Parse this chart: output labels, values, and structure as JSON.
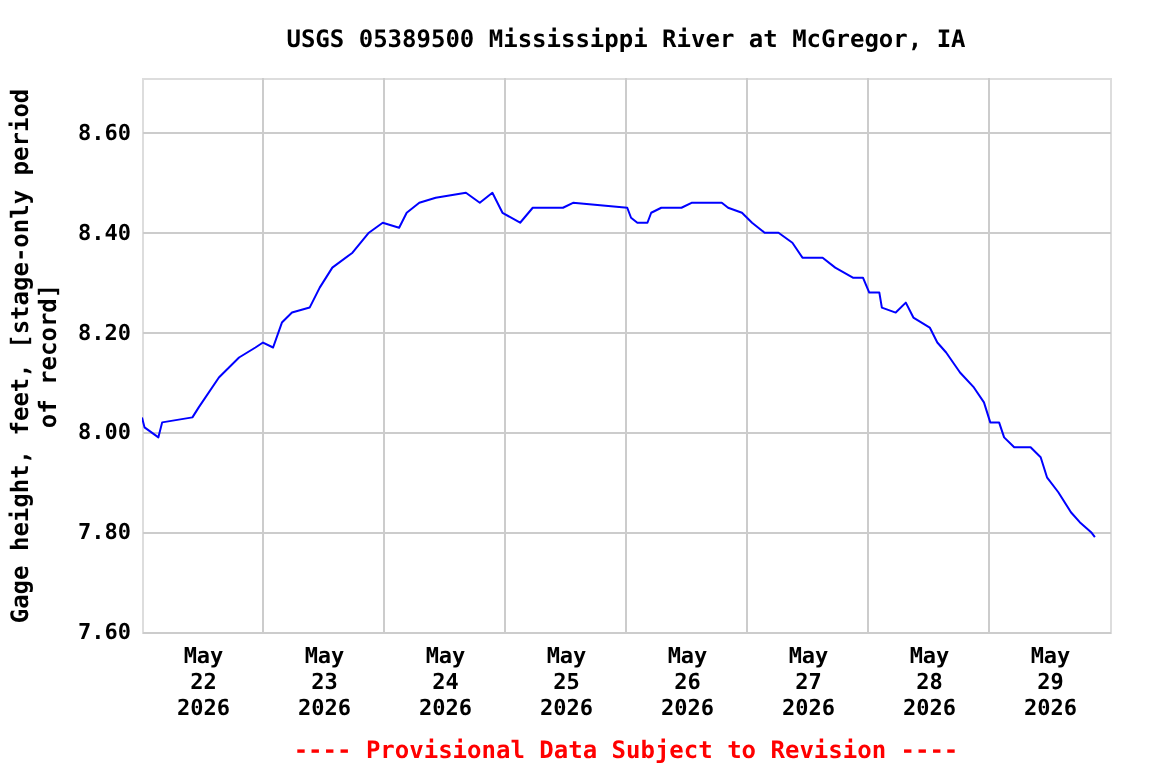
{
  "chart_data": {
    "type": "line",
    "title": "USGS 05389500 Mississippi River at McGregor, IA",
    "ylabel": "Gage height, feet, [stage-only period\nof record]",
    "annotations": [
      "---- Provisional Data Subject to Revision ----"
    ],
    "x": [
      "2026-05-22T00:00",
      "2026-05-22T00:30",
      "2026-05-22T03:15",
      "2026-05-22T04:00",
      "2026-05-22T10:00",
      "2026-05-22T11:15",
      "2026-05-22T15:15",
      "2026-05-22T17:15",
      "2026-05-22T19:15",
      "2026-05-22T22:30",
      "2026-05-23T00:00",
      "2026-05-23T02:00",
      "2026-05-23T03:45",
      "2026-05-23T05:45",
      "2026-05-23T09:15",
      "2026-05-23T11:15",
      "2026-05-23T13:45",
      "2026-05-23T17:45",
      "2026-05-23T21:00",
      "2026-05-23T23:45",
      "2026-05-24T03:00",
      "2026-05-24T04:30",
      "2026-05-24T07:00",
      "2026-05-24T10:15",
      "2026-05-24T16:15",
      "2026-05-24T19:00",
      "2026-05-24T21:30",
      "2026-05-24T23:30",
      "2026-05-25T03:00",
      "2026-05-25T05:30",
      "2026-05-25T11:30",
      "2026-05-25T13:30",
      "2026-05-26T00:15",
      "2026-05-26T01:00",
      "2026-05-26T02:15",
      "2026-05-26T04:15",
      "2026-05-26T05:00",
      "2026-05-26T07:00",
      "2026-05-26T11:00",
      "2026-05-26T13:00",
      "2026-05-26T19:00",
      "2026-05-26T20:15",
      "2026-05-26T23:00",
      "2026-05-27T01:00",
      "2026-05-27T03:30",
      "2026-05-27T06:15",
      "2026-05-27T09:00",
      "2026-05-27T11:00",
      "2026-05-27T15:00",
      "2026-05-27T17:30",
      "2026-05-27T21:00",
      "2026-05-27T23:00",
      "2026-05-28T00:15",
      "2026-05-28T02:15",
      "2026-05-28T02:45",
      "2026-05-28T05:30",
      "2026-05-28T07:30",
      "2026-05-28T09:00",
      "2026-05-28T12:15",
      "2026-05-28T13:45",
      "2026-05-28T15:30",
      "2026-05-28T18:15",
      "2026-05-28T21:00",
      "2026-05-28T23:00",
      "2026-05-29T00:15",
      "2026-05-29T02:00",
      "2026-05-29T03:00",
      "2026-05-29T05:00",
      "2026-05-29T08:15",
      "2026-05-29T10:15",
      "2026-05-29T11:30",
      "2026-05-29T13:45",
      "2026-05-29T16:15",
      "2026-05-29T18:00",
      "2026-05-29T20:15",
      "2026-05-29T21:00"
    ],
    "series": [
      {
        "color": "#0000ff",
        "values": [
          8.03,
          8.01,
          7.99,
          8.02,
          8.03,
          8.05,
          8.11,
          8.13,
          8.15,
          8.17,
          8.18,
          8.17,
          8.22,
          8.24,
          8.25,
          8.29,
          8.33,
          8.36,
          8.4,
          8.42,
          8.41,
          8.44,
          8.46,
          8.47,
          8.48,
          8.46,
          8.48,
          8.44,
          8.42,
          8.45,
          8.45,
          8.46,
          8.45,
          8.43,
          8.42,
          8.42,
          8.44,
          8.45,
          8.45,
          8.46,
          8.46,
          8.45,
          8.44,
          8.42,
          8.4,
          8.4,
          8.38,
          8.35,
          8.35,
          8.33,
          8.31,
          8.31,
          8.28,
          8.28,
          8.25,
          8.24,
          8.26,
          8.23,
          8.21,
          8.18,
          8.16,
          8.12,
          8.09,
          8.06,
          8.02,
          8.02,
          7.99,
          7.97,
          7.97,
          7.95,
          7.91,
          7.88,
          7.84,
          7.82,
          7.8,
          7.79
        ]
      }
    ],
    "xlim": [
      "2026-05-22T00:00",
      "2026-05-30T00:00"
    ],
    "xticks": [
      {
        "value": "2026-05-22T12:00",
        "label": "May\n22\n2026"
      },
      {
        "value": "2026-05-23T00:00",
        "label": null
      },
      {
        "value": "2026-05-23T12:00",
        "label": "May\n23\n2026"
      },
      {
        "value": "2026-05-24T00:00",
        "label": null
      },
      {
        "value": "2026-05-24T12:00",
        "label": "May\n24\n2026"
      },
      {
        "value": "2026-05-25T00:00",
        "label": null
      },
      {
        "value": "2026-05-25T12:00",
        "label": "May\n25\n2026"
      },
      {
        "value": "2026-05-26T00:00",
        "label": null
      },
      {
        "value": "2026-05-26T12:00",
        "label": "May\n26\n2026"
      },
      {
        "value": "2026-05-27T00:00",
        "label": null
      },
      {
        "value": "2026-05-27T12:00",
        "label": "May\n27\n2026"
      },
      {
        "value": "2026-05-28T00:00",
        "label": null
      },
      {
        "value": "2026-05-28T12:00",
        "label": "May\n28\n2026"
      },
      {
        "value": "2026-05-29T00:00",
        "label": null
      },
      {
        "value": "2026-05-29T12:00",
        "label": "May\n29\n2026"
      }
    ],
    "ylim": [
      7.6,
      8.71
    ],
    "yticks": [
      {
        "value": 7.6,
        "label": "7.60"
      },
      {
        "value": 7.8,
        "label": "7.80"
      },
      {
        "value": 8.0,
        "label": "8.00"
      },
      {
        "value": 8.2,
        "label": "8.20"
      },
      {
        "value": 8.4,
        "label": "8.40"
      },
      {
        "value": 8.6,
        "label": "8.60"
      }
    ],
    "grid": true,
    "line_style": "solid",
    "marker": "none"
  }
}
